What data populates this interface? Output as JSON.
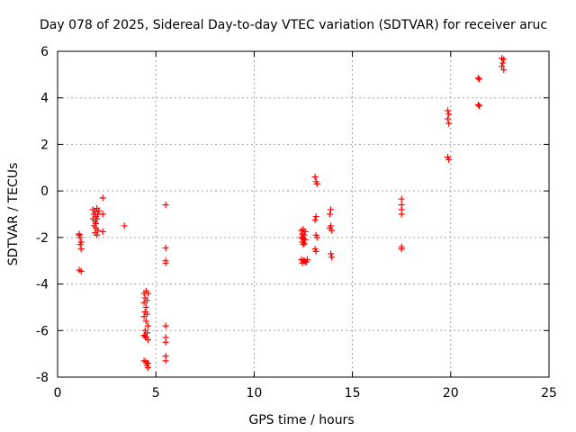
{
  "chart_data": {
    "type": "scatter",
    "title": "Day 078 of 2025, Sidereal Day-to-day VTEC variation (SDTVAR) for receiver aruc",
    "xlabel": "GPS time / hours",
    "ylabel": "SDTVAR / TECUs",
    "xlim": [
      0,
      25
    ],
    "ylim": [
      -8,
      6
    ],
    "xticks": [
      0,
      5,
      10,
      15,
      20,
      25
    ],
    "yticks": [
      -8,
      -6,
      -4,
      -2,
      0,
      2,
      4,
      6
    ],
    "grid": true,
    "marker": "plus",
    "color": "#ff0000",
    "series": [
      {
        "name": "SDTVAR",
        "points": [
          [
            1.1,
            -1.9
          ],
          [
            1.15,
            -2.0
          ],
          [
            1.2,
            -2.2
          ],
          [
            1.15,
            -2.3
          ],
          [
            1.2,
            -2.5
          ],
          [
            1.1,
            -1.85
          ],
          [
            1.1,
            -3.4
          ],
          [
            1.2,
            -3.45
          ],
          [
            1.8,
            -0.8
          ],
          [
            1.9,
            -0.9
          ],
          [
            2.0,
            -0.75
          ],
          [
            1.85,
            -1.0
          ],
          [
            1.95,
            -1.1
          ],
          [
            2.0,
            -1.2
          ],
          [
            1.9,
            -1.3
          ],
          [
            1.85,
            -1.5
          ],
          [
            1.95,
            -1.6
          ],
          [
            2.05,
            -1.7
          ],
          [
            1.9,
            -1.8
          ],
          [
            2.0,
            -1.9
          ],
          [
            2.1,
            -0.85
          ],
          [
            2.05,
            -1.0
          ],
          [
            1.8,
            -1.2
          ],
          [
            1.95,
            -1.4
          ],
          [
            2.3,
            -0.3
          ],
          [
            2.3,
            -1.0
          ],
          [
            2.3,
            -1.75
          ],
          [
            3.4,
            -1.5
          ],
          [
            4.4,
            -4.4
          ],
          [
            4.5,
            -4.3
          ],
          [
            4.6,
            -4.4
          ],
          [
            4.45,
            -4.6
          ],
          [
            4.55,
            -4.7
          ],
          [
            4.4,
            -4.8
          ],
          [
            4.5,
            -5.0
          ],
          [
            4.45,
            -5.2
          ],
          [
            4.55,
            -5.3
          ],
          [
            4.4,
            -5.4
          ],
          [
            4.5,
            -5.6
          ],
          [
            4.6,
            -5.8
          ],
          [
            4.45,
            -6.0
          ],
          [
            4.55,
            -6.1
          ],
          [
            4.4,
            -6.2
          ],
          [
            4.5,
            -6.3
          ],
          [
            4.6,
            -6.4
          ],
          [
            4.45,
            -6.25
          ],
          [
            4.4,
            -7.3
          ],
          [
            4.5,
            -7.35
          ],
          [
            4.6,
            -7.4
          ],
          [
            4.55,
            -7.5
          ],
          [
            4.6,
            -7.6
          ],
          [
            5.5,
            -0.6
          ],
          [
            5.5,
            -2.45
          ],
          [
            5.5,
            -3.0
          ],
          [
            5.5,
            -3.1
          ],
          [
            5.5,
            -5.8
          ],
          [
            5.5,
            -6.3
          ],
          [
            5.5,
            -6.5
          ],
          [
            5.5,
            -7.1
          ],
          [
            5.5,
            -7.3
          ],
          [
            12.4,
            -1.7
          ],
          [
            12.5,
            -1.65
          ],
          [
            12.6,
            -1.75
          ],
          [
            12.45,
            -1.85
          ],
          [
            12.55,
            -1.9
          ],
          [
            12.4,
            -2.0
          ],
          [
            12.5,
            -2.05
          ],
          [
            12.6,
            -2.1
          ],
          [
            12.45,
            -2.2
          ],
          [
            12.55,
            -2.25
          ],
          [
            12.5,
            -2.3
          ],
          [
            12.4,
            -2.95
          ],
          [
            12.5,
            -3.0
          ],
          [
            12.6,
            -3.05
          ],
          [
            12.45,
            -3.1
          ],
          [
            12.55,
            -3.0
          ],
          [
            12.7,
            -2.95
          ],
          [
            12.65,
            -3.05
          ],
          [
            13.1,
            0.6
          ],
          [
            13.15,
            0.4
          ],
          [
            13.2,
            0.3
          ],
          [
            13.15,
            -1.1
          ],
          [
            13.1,
            -1.25
          ],
          [
            13.15,
            -1.9
          ],
          [
            13.2,
            -2.0
          ],
          [
            13.1,
            -2.5
          ],
          [
            13.15,
            -2.6
          ],
          [
            13.9,
            -0.8
          ],
          [
            13.85,
            -1.0
          ],
          [
            13.9,
            -1.5
          ],
          [
            13.95,
            -1.7
          ],
          [
            13.85,
            -1.6
          ],
          [
            13.9,
            -2.7
          ],
          [
            13.95,
            -2.85
          ],
          [
            17.5,
            -0.35
          ],
          [
            17.5,
            -0.6
          ],
          [
            17.5,
            -0.8
          ],
          [
            17.5,
            -1.0
          ],
          [
            17.5,
            -2.4
          ],
          [
            17.5,
            -2.5
          ],
          [
            19.85,
            3.45
          ],
          [
            19.9,
            3.3
          ],
          [
            19.85,
            3.1
          ],
          [
            19.9,
            2.9
          ],
          [
            19.85,
            1.45
          ],
          [
            19.9,
            1.35
          ],
          [
            21.4,
            4.85
          ],
          [
            21.45,
            4.8
          ],
          [
            21.4,
            3.7
          ],
          [
            21.45,
            3.65
          ],
          [
            22.6,
            5.7
          ],
          [
            22.7,
            5.65
          ],
          [
            22.65,
            5.5
          ],
          [
            22.6,
            5.35
          ],
          [
            22.7,
            5.2
          ]
        ]
      }
    ]
  }
}
